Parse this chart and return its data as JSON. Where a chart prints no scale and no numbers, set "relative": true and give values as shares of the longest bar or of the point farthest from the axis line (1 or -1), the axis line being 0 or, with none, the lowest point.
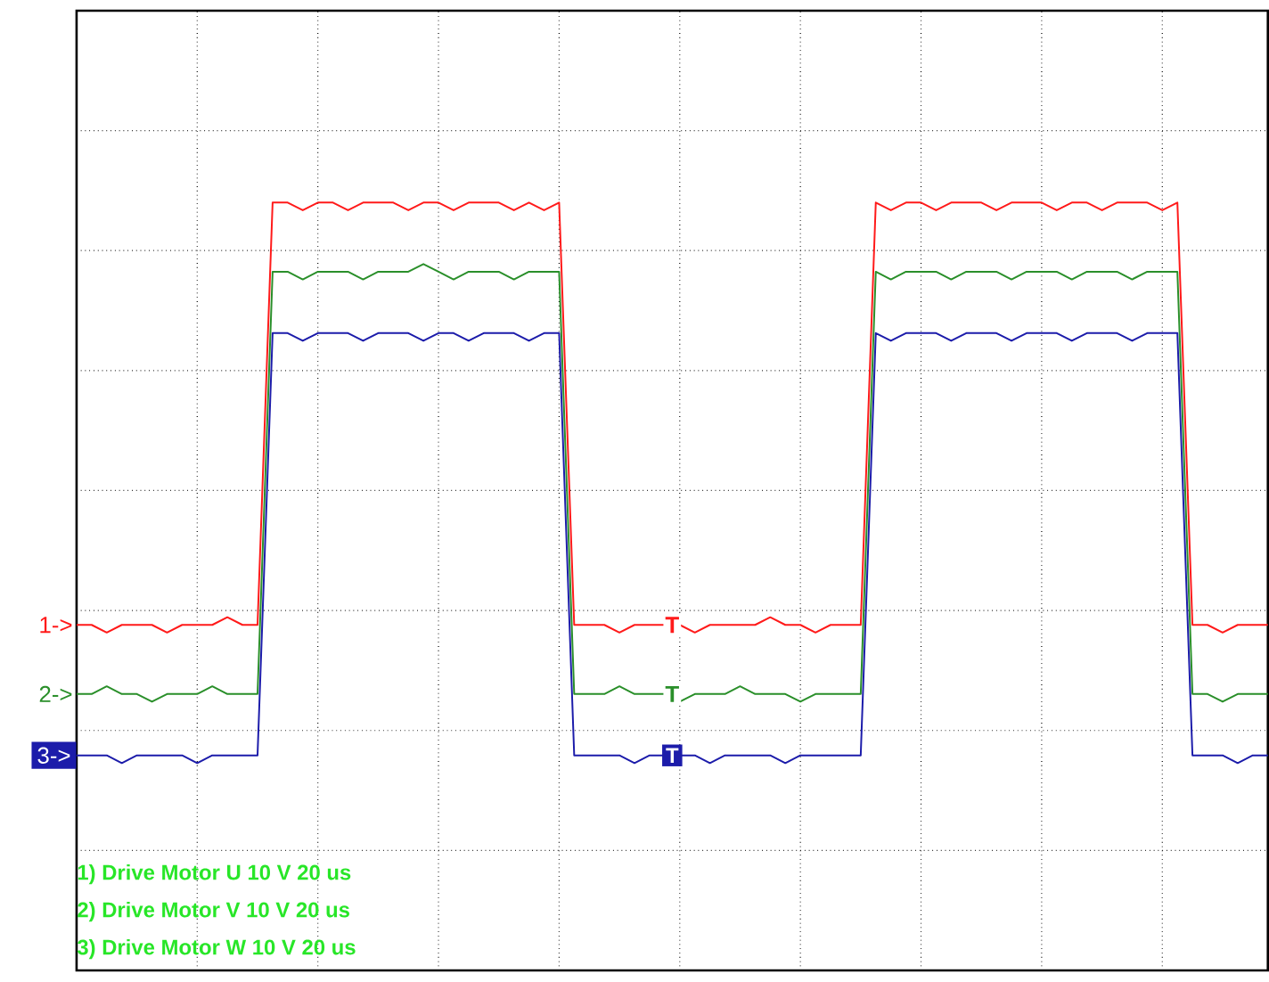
{
  "chart_data": {
    "type": "line",
    "relative": true,
    "grid": true,
    "tick_labels": false,
    "categories": [
      null,
      null,
      null,
      null,
      null,
      null,
      null,
      null,
      null,
      null,
      null,
      null,
      null,
      null,
      null,
      null,
      null,
      null,
      null,
      null,
      null,
      null,
      null,
      null,
      null,
      null,
      null,
      null,
      null,
      null,
      null,
      null,
      null,
      null,
      null,
      null,
      null,
      null,
      null,
      null,
      null,
      null,
      null,
      null,
      null,
      null,
      null,
      null,
      null,
      null,
      null,
      null,
      null,
      null,
      null,
      null,
      null,
      null,
      null,
      null,
      null,
      null,
      null,
      null,
      null,
      null,
      null,
      null,
      null,
      null,
      null,
      null,
      null,
      null,
      null,
      null,
      null,
      null,
      null,
      null
    ],
    "series": [
      {
        "name": "1->",
        "color": "#ff1a1a",
        "values": [
          0.45,
          0.45,
          0.44,
          0.45,
          0.45,
          0.45,
          0.44,
          0.45,
          0.45,
          0.45,
          0.46,
          0.45,
          0.45,
          1.0,
          1.0,
          0.99,
          1.0,
          1.0,
          0.99,
          1.0,
          1.0,
          1.0,
          0.99,
          1.0,
          1.0,
          0.99,
          1.0,
          1.0,
          1.0,
          0.99,
          1.0,
          0.99,
          1.0,
          0.45,
          0.45,
          0.45,
          0.44,
          0.45,
          0.45,
          0.45,
          0.45,
          0.44,
          0.45,
          0.45,
          0.45,
          0.45,
          0.46,
          0.45,
          0.45,
          0.44,
          0.45,
          0.45,
          0.45,
          1.0,
          0.99,
          1.0,
          1.0,
          0.99,
          1.0,
          1.0,
          1.0,
          0.99,
          1.0,
          1.0,
          1.0,
          0.99,
          1.0,
          1.0,
          0.99,
          1.0,
          1.0,
          1.0,
          0.99,
          1.0,
          0.45,
          0.45,
          0.44,
          0.45,
          0.45,
          0.45
        ]
      },
      {
        "name": "2->",
        "color": "#2a8f2a",
        "values": [
          0.36,
          0.36,
          0.37,
          0.36,
          0.36,
          0.35,
          0.36,
          0.36,
          0.36,
          0.37,
          0.36,
          0.36,
          0.36,
          0.91,
          0.91,
          0.9,
          0.91,
          0.91,
          0.91,
          0.9,
          0.91,
          0.91,
          0.91,
          0.92,
          0.91,
          0.9,
          0.91,
          0.91,
          0.91,
          0.9,
          0.91,
          0.91,
          0.91,
          0.36,
          0.36,
          0.36,
          0.37,
          0.36,
          0.36,
          0.36,
          0.35,
          0.36,
          0.36,
          0.36,
          0.37,
          0.36,
          0.36,
          0.36,
          0.35,
          0.36,
          0.36,
          0.36,
          0.36,
          0.91,
          0.9,
          0.91,
          0.91,
          0.91,
          0.9,
          0.91,
          0.91,
          0.91,
          0.9,
          0.91,
          0.91,
          0.91,
          0.9,
          0.91,
          0.91,
          0.91,
          0.9,
          0.91,
          0.91,
          0.91,
          0.36,
          0.36,
          0.35,
          0.36,
          0.36,
          0.36
        ]
      },
      {
        "name": "3->",
        "color": "#1c1caa",
        "values": [
          0.28,
          0.28,
          0.28,
          0.27,
          0.28,
          0.28,
          0.28,
          0.28,
          0.27,
          0.28,
          0.28,
          0.28,
          0.28,
          0.83,
          0.83,
          0.82,
          0.83,
          0.83,
          0.83,
          0.82,
          0.83,
          0.83,
          0.83,
          0.82,
          0.83,
          0.83,
          0.82,
          0.83,
          0.83,
          0.83,
          0.82,
          0.83,
          0.83,
          0.28,
          0.28,
          0.28,
          0.28,
          0.27,
          0.28,
          0.28,
          0.28,
          0.28,
          0.27,
          0.28,
          0.28,
          0.28,
          0.28,
          0.27,
          0.28,
          0.28,
          0.28,
          0.28,
          0.28,
          0.83,
          0.82,
          0.83,
          0.83,
          0.83,
          0.82,
          0.83,
          0.83,
          0.83,
          0.82,
          0.83,
          0.83,
          0.83,
          0.82,
          0.83,
          0.83,
          0.83,
          0.82,
          0.83,
          0.83,
          0.83,
          0.28,
          0.28,
          0.28,
          0.27,
          0.28,
          0.28
        ]
      }
    ],
    "annotations": [
      "T",
      "T",
      "T",
      "1) Drive Motor U 10 V 20 us",
      "2) Drive Motor V 10 V 20 us",
      "3) Drive Motor W 10 V 20 us"
    ]
  }
}
